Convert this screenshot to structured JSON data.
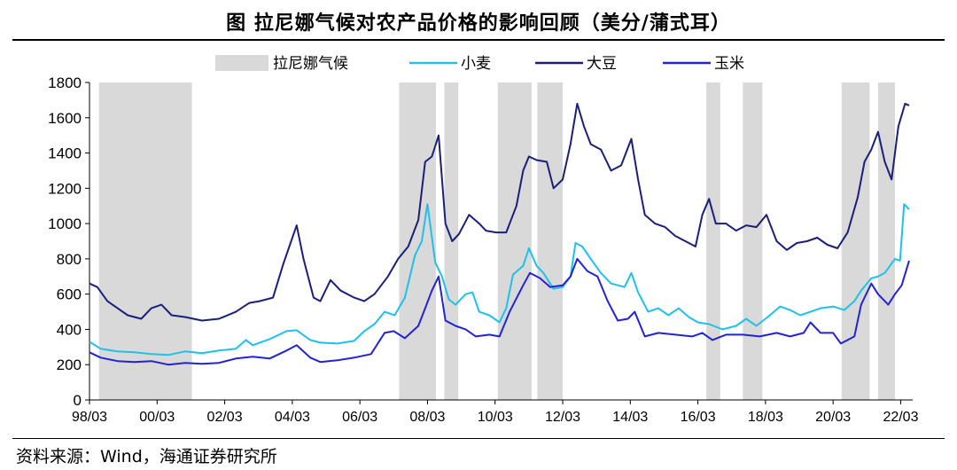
{
  "title": "图  拉尼娜气候对农产品价格的影响回顾（美分/蒲式耳）",
  "source": "资料来源：Wind，海通证券研究所",
  "chart_data": {
    "type": "line",
    "ylim": [
      0,
      1800
    ],
    "yticks": [
      0,
      200,
      400,
      600,
      800,
      1000,
      1200,
      1400,
      1600,
      1800
    ],
    "xlim": [
      1998.17,
      2022.42
    ],
    "xticks": [
      {
        "label": "98/03",
        "value": 1998.17
      },
      {
        "label": "00/03",
        "value": 2000.17
      },
      {
        "label": "02/03",
        "value": 2002.17
      },
      {
        "label": "04/03",
        "value": 2004.17
      },
      {
        "label": "06/03",
        "value": 2006.17
      },
      {
        "label": "08/03",
        "value": 2008.17
      },
      {
        "label": "10/03",
        "value": 2010.17
      },
      {
        "label": "12/03",
        "value": 2012.17
      },
      {
        "label": "14/03",
        "value": 2014.17
      },
      {
        "label": "16/03",
        "value": 2016.17
      },
      {
        "label": "18/03",
        "value": 2018.17
      },
      {
        "label": "20/03",
        "value": 2020.17
      },
      {
        "label": "22/03",
        "value": 2022.17
      }
    ],
    "lanina_label": "拉尼娜气候",
    "lanina_periods": [
      [
        1998.45,
        2001.2
      ],
      [
        2007.33,
        2008.42
      ],
      [
        2008.67,
        2009.08
      ],
      [
        2010.25,
        2011.25
      ],
      [
        2011.42,
        2012.17
      ],
      [
        2016.42,
        2016.83
      ],
      [
        2017.5,
        2018.08
      ],
      [
        2020.42,
        2021.25
      ],
      [
        2021.5,
        2022.0
      ]
    ],
    "series": [
      {
        "name": "小麦",
        "color": "#1FC0EA",
        "points": [
          [
            1998.17,
            330
          ],
          [
            1998.5,
            290
          ],
          [
            1999.0,
            275
          ],
          [
            1999.5,
            270
          ],
          [
            2000.0,
            260
          ],
          [
            2000.5,
            255
          ],
          [
            2001.0,
            275
          ],
          [
            2001.5,
            265
          ],
          [
            2002.0,
            280
          ],
          [
            2002.5,
            290
          ],
          [
            2002.8,
            340
          ],
          [
            2003.0,
            310
          ],
          [
            2003.5,
            345
          ],
          [
            2004.0,
            390
          ],
          [
            2004.3,
            395
          ],
          [
            2004.7,
            340
          ],
          [
            2005.0,
            325
          ],
          [
            2005.5,
            320
          ],
          [
            2006.0,
            335
          ],
          [
            2006.3,
            390
          ],
          [
            2006.6,
            430
          ],
          [
            2006.9,
            500
          ],
          [
            2007.2,
            480
          ],
          [
            2007.5,
            580
          ],
          [
            2007.8,
            820
          ],
          [
            2008.0,
            900
          ],
          [
            2008.17,
            1110
          ],
          [
            2008.4,
            780
          ],
          [
            2008.6,
            700
          ],
          [
            2008.8,
            570
          ],
          [
            2009.0,
            540
          ],
          [
            2009.3,
            600
          ],
          [
            2009.5,
            610
          ],
          [
            2009.7,
            500
          ],
          [
            2010.0,
            480
          ],
          [
            2010.3,
            440
          ],
          [
            2010.5,
            520
          ],
          [
            2010.7,
            710
          ],
          [
            2011.0,
            760
          ],
          [
            2011.17,
            860
          ],
          [
            2011.4,
            760
          ],
          [
            2011.6,
            720
          ],
          [
            2011.9,
            630
          ],
          [
            2012.17,
            640
          ],
          [
            2012.4,
            700
          ],
          [
            2012.55,
            890
          ],
          [
            2012.75,
            870
          ],
          [
            2013.0,
            800
          ],
          [
            2013.3,
            720
          ],
          [
            2013.6,
            660
          ],
          [
            2014.0,
            640
          ],
          [
            2014.2,
            720
          ],
          [
            2014.4,
            610
          ],
          [
            2014.7,
            500
          ],
          [
            2015.0,
            520
          ],
          [
            2015.3,
            480
          ],
          [
            2015.6,
            520
          ],
          [
            2015.9,
            470
          ],
          [
            2016.17,
            440
          ],
          [
            2016.5,
            430
          ],
          [
            2016.9,
            400
          ],
          [
            2017.3,
            420
          ],
          [
            2017.6,
            460
          ],
          [
            2017.9,
            420
          ],
          [
            2018.3,
            480
          ],
          [
            2018.6,
            530
          ],
          [
            2018.9,
            510
          ],
          [
            2019.2,
            480
          ],
          [
            2019.5,
            500
          ],
          [
            2019.8,
            520
          ],
          [
            2020.17,
            530
          ],
          [
            2020.5,
            510
          ],
          [
            2020.8,
            560
          ],
          [
            2021.0,
            620
          ],
          [
            2021.3,
            690
          ],
          [
            2021.5,
            700
          ],
          [
            2021.7,
            720
          ],
          [
            2022.0,
            800
          ],
          [
            2022.15,
            790
          ],
          [
            2022.27,
            1110
          ],
          [
            2022.42,
            1080
          ]
        ]
      },
      {
        "name": "大豆",
        "color": "#1A1F7A",
        "points": [
          [
            1998.17,
            660
          ],
          [
            1998.4,
            640
          ],
          [
            1998.7,
            560
          ],
          [
            1999.0,
            520
          ],
          [
            1999.3,
            480
          ],
          [
            1999.7,
            460
          ],
          [
            2000.0,
            520
          ],
          [
            2000.3,
            540
          ],
          [
            2000.6,
            480
          ],
          [
            2001.0,
            470
          ],
          [
            2001.5,
            450
          ],
          [
            2002.0,
            460
          ],
          [
            2002.5,
            500
          ],
          [
            2002.9,
            550
          ],
          [
            2003.2,
            560
          ],
          [
            2003.6,
            580
          ],
          [
            2003.9,
            770
          ],
          [
            2004.1,
            880
          ],
          [
            2004.3,
            990
          ],
          [
            2004.5,
            800
          ],
          [
            2004.8,
            580
          ],
          [
            2005.0,
            560
          ],
          [
            2005.3,
            680
          ],
          [
            2005.6,
            620
          ],
          [
            2006.0,
            580
          ],
          [
            2006.3,
            560
          ],
          [
            2006.6,
            600
          ],
          [
            2007.0,
            700
          ],
          [
            2007.3,
            800
          ],
          [
            2007.6,
            870
          ],
          [
            2007.9,
            1020
          ],
          [
            2008.1,
            1350
          ],
          [
            2008.3,
            1380
          ],
          [
            2008.5,
            1500
          ],
          [
            2008.7,
            1000
          ],
          [
            2008.9,
            900
          ],
          [
            2009.1,
            940
          ],
          [
            2009.4,
            1050
          ],
          [
            2009.7,
            1000
          ],
          [
            2009.9,
            960
          ],
          [
            2010.2,
            950
          ],
          [
            2010.5,
            950
          ],
          [
            2010.8,
            1100
          ],
          [
            2011.0,
            1300
          ],
          [
            2011.17,
            1380
          ],
          [
            2011.4,
            1360
          ],
          [
            2011.7,
            1350
          ],
          [
            2011.9,
            1200
          ],
          [
            2012.17,
            1250
          ],
          [
            2012.4,
            1450
          ],
          [
            2012.6,
            1680
          ],
          [
            2012.8,
            1550
          ],
          [
            2013.0,
            1450
          ],
          [
            2013.3,
            1420
          ],
          [
            2013.6,
            1300
          ],
          [
            2013.9,
            1330
          ],
          [
            2014.2,
            1480
          ],
          [
            2014.4,
            1250
          ],
          [
            2014.6,
            1050
          ],
          [
            2014.9,
            1000
          ],
          [
            2015.2,
            980
          ],
          [
            2015.5,
            930
          ],
          [
            2015.8,
            900
          ],
          [
            2016.1,
            870
          ],
          [
            2016.3,
            1050
          ],
          [
            2016.5,
            1140
          ],
          [
            2016.7,
            1000
          ],
          [
            2017.0,
            1000
          ],
          [
            2017.3,
            960
          ],
          [
            2017.6,
            990
          ],
          [
            2017.9,
            980
          ],
          [
            2018.2,
            1050
          ],
          [
            2018.5,
            900
          ],
          [
            2018.8,
            850
          ],
          [
            2019.1,
            890
          ],
          [
            2019.4,
            900
          ],
          [
            2019.7,
            920
          ],
          [
            2020.0,
            880
          ],
          [
            2020.3,
            860
          ],
          [
            2020.6,
            950
          ],
          [
            2020.9,
            1150
          ],
          [
            2021.1,
            1350
          ],
          [
            2021.3,
            1420
          ],
          [
            2021.5,
            1520
          ],
          [
            2021.7,
            1350
          ],
          [
            2021.9,
            1250
          ],
          [
            2022.1,
            1550
          ],
          [
            2022.3,
            1680
          ],
          [
            2022.42,
            1670
          ]
        ]
      },
      {
        "name": "玉米",
        "color": "#2323D2",
        "points": [
          [
            1998.17,
            270
          ],
          [
            1998.5,
            240
          ],
          [
            1999.0,
            220
          ],
          [
            1999.5,
            215
          ],
          [
            2000.0,
            220
          ],
          [
            2000.5,
            200
          ],
          [
            2001.0,
            210
          ],
          [
            2001.5,
            205
          ],
          [
            2002.0,
            210
          ],
          [
            2002.5,
            235
          ],
          [
            2003.0,
            245
          ],
          [
            2003.5,
            235
          ],
          [
            2004.0,
            280
          ],
          [
            2004.3,
            310
          ],
          [
            2004.7,
            240
          ],
          [
            2005.0,
            215
          ],
          [
            2005.5,
            225
          ],
          [
            2006.0,
            240
          ],
          [
            2006.5,
            260
          ],
          [
            2006.9,
            380
          ],
          [
            2007.17,
            390
          ],
          [
            2007.5,
            350
          ],
          [
            2007.9,
            420
          ],
          [
            2008.1,
            520
          ],
          [
            2008.3,
            620
          ],
          [
            2008.5,
            700
          ],
          [
            2008.7,
            450
          ],
          [
            2009.0,
            420
          ],
          [
            2009.3,
            400
          ],
          [
            2009.6,
            360
          ],
          [
            2010.0,
            370
          ],
          [
            2010.3,
            360
          ],
          [
            2010.6,
            500
          ],
          [
            2011.0,
            650
          ],
          [
            2011.2,
            720
          ],
          [
            2011.5,
            690
          ],
          [
            2011.8,
            640
          ],
          [
            2012.17,
            650
          ],
          [
            2012.4,
            700
          ],
          [
            2012.6,
            800
          ],
          [
            2012.9,
            730
          ],
          [
            2013.2,
            700
          ],
          [
            2013.5,
            560
          ],
          [
            2013.8,
            450
          ],
          [
            2014.1,
            460
          ],
          [
            2014.3,
            500
          ],
          [
            2014.6,
            360
          ],
          [
            2015.0,
            380
          ],
          [
            2015.5,
            370
          ],
          [
            2016.0,
            360
          ],
          [
            2016.3,
            380
          ],
          [
            2016.6,
            340
          ],
          [
            2017.0,
            370
          ],
          [
            2017.5,
            370
          ],
          [
            2018.0,
            360
          ],
          [
            2018.5,
            380
          ],
          [
            2018.9,
            360
          ],
          [
            2019.3,
            380
          ],
          [
            2019.5,
            440
          ],
          [
            2019.8,
            380
          ],
          [
            2020.17,
            380
          ],
          [
            2020.4,
            320
          ],
          [
            2020.8,
            360
          ],
          [
            2021.0,
            540
          ],
          [
            2021.3,
            660
          ],
          [
            2021.5,
            600
          ],
          [
            2021.8,
            540
          ],
          [
            2022.0,
            600
          ],
          [
            2022.2,
            650
          ],
          [
            2022.42,
            790
          ]
        ]
      }
    ]
  }
}
